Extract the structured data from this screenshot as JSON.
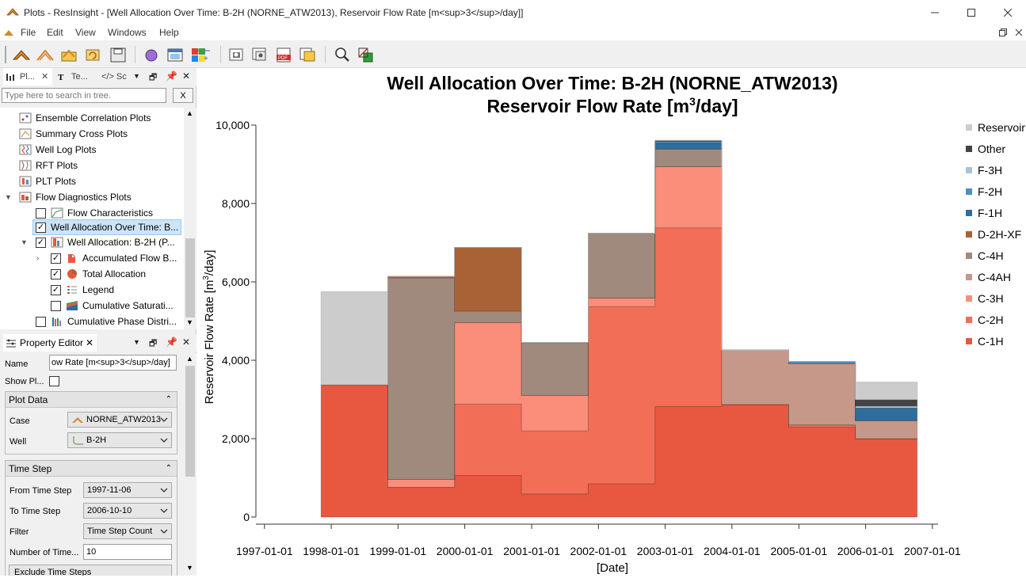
{
  "window": {
    "title": "Plots - ResInsight - [Well Allocation Over Time: B-2H (NORNE_ATW2013), Reservoir Flow Rate [m<sup>3</sup>/day]]"
  },
  "menu": [
    "File",
    "Edit",
    "View",
    "Windows",
    "Help"
  ],
  "project_tree": {
    "tabs": [
      "Pl...",
      "Te...",
      "Sc"
    ],
    "search_placeholder": "Type here to search in tree.",
    "search_clear": "X",
    "items": [
      {
        "label": "Ensemble Correlation Plots",
        "icon": "correlation-plot-icon"
      },
      {
        "label": "Summary Cross Plots",
        "icon": "cross-plot-icon"
      },
      {
        "label": "Well Log Plots",
        "icon": "well-log-icon"
      },
      {
        "label": "RFT Plots",
        "icon": "rft-plot-icon"
      },
      {
        "label": "PLT Plots",
        "icon": "plt-plot-icon"
      },
      {
        "label": "Flow Diagnostics Plots",
        "icon": "flow-diagnostics-icon"
      },
      {
        "label": "Flow Characteristics",
        "icon": "flow-characteristics-icon",
        "checked": false
      },
      {
        "label": "Well Allocation Over Time: B...",
        "icon": "",
        "checked": true,
        "selected": true
      },
      {
        "label": "Well Allocation: B-2H (P...",
        "icon": "well-allocation-icon",
        "checked": true
      },
      {
        "label": "Accumulated Flow B...",
        "icon": "accumulated-flow-icon",
        "checked": true
      },
      {
        "label": "Total Allocation",
        "icon": "pie-chart-icon",
        "checked": true
      },
      {
        "label": "Legend",
        "icon": "legend-icon",
        "checked": true
      },
      {
        "label": "Cumulative Saturati...",
        "icon": "saturation-icon",
        "checked": false
      },
      {
        "label": "Cumulative Phase Distri...",
        "icon": "phase-distribution-icon",
        "checked": false
      }
    ]
  },
  "property_editor": {
    "title": "Property Editor",
    "name_label": "Name",
    "name_value": "ow Rate [m<sup>3</sup>/day]",
    "show_plot_label": "Show Pl...",
    "show_plot_checked": false,
    "plot_data_group": "Plot Data",
    "case_label": "Case",
    "case_value": "NORNE_ATW2013",
    "well_label": "Well",
    "well_value": "B-2H",
    "time_step_group": "Time Step",
    "from_label": "From Time Step",
    "from_value": "1997-11-06",
    "to_label": "To Time Step",
    "to_value": "2006-10-10",
    "filter_label": "Filter",
    "filter_value": "Time Step Count",
    "num_label": "Number of Time...",
    "num_value": "10",
    "exclude_label": "Exclude Time Steps"
  },
  "chart_data": {
    "type": "area",
    "subtype": "stacked-step",
    "title_line1": "Well Allocation Over Time: B-2H (NORNE_ATW2013)",
    "title_line2_prefix": "Reservoir Flow Rate [m",
    "title_line2_sup": "3",
    "title_line2_suffix": "/day]",
    "ylabel_prefix": "Reservoir Flow Rate [m",
    "ylabel_sup": "3",
    "ylabel_suffix": "/day]",
    "xlabel": "[Date]",
    "ylim": [
      0,
      10000
    ],
    "yticks": [
      0,
      2000,
      4000,
      6000,
      8000,
      10000
    ],
    "ytick_labels": [
      "0",
      "2,000",
      "4,000",
      "6,000",
      "8,000",
      "10,000"
    ],
    "xticks": [
      "1997-01-01",
      "1998-01-01",
      "1999-01-01",
      "2000-01-01",
      "2001-01-01",
      "2002-01-01",
      "2003-01-01",
      "2004-01-01",
      "2005-01-01",
      "2006-01-01",
      "2007-01-01"
    ],
    "time_steps": [
      "1997-11-06",
      "1998-11-06",
      "1999-11-06",
      "2000-11-06",
      "2001-11-06",
      "2002-11-06",
      "2003-11-06",
      "2004-11-06",
      "2005-11-06",
      "2006-10-10"
    ],
    "legend_position": "right",
    "series": [
      {
        "name": "C-1H",
        "color": "#e8573f",
        "values": [
          3380,
          760,
          1060,
          590,
          850,
          2820,
          2870,
          2290,
          2000
        ]
      },
      {
        "name": "C-2H",
        "color": "#f26e57",
        "values": [
          0,
          0,
          1820,
          1610,
          4520,
          4560,
          0,
          60,
          0
        ]
      },
      {
        "name": "C-3H",
        "color": "#fb8d7b",
        "values": [
          0,
          200,
          2080,
          900,
          220,
          1560,
          0,
          0,
          0
        ]
      },
      {
        "name": "C-4AH",
        "color": "#c59889",
        "values": [
          0,
          0,
          0,
          0,
          0,
          0,
          1390,
          1570,
          460
        ]
      },
      {
        "name": "C-4H",
        "color": "#a08a7d",
        "values": [
          0,
          5140,
          290,
          1350,
          1650,
          450,
          0,
          0,
          0
        ]
      },
      {
        "name": "D-2H-XF",
        "color": "#a96236",
        "values": [
          0,
          40,
          1630,
          0,
          0,
          0,
          0,
          0,
          0
        ]
      },
      {
        "name": "F-1H",
        "color": "#2e6e9c",
        "values": [
          0,
          0,
          0,
          0,
          0,
          150,
          0,
          0,
          320
        ]
      },
      {
        "name": "F-2H",
        "color": "#4f8fbf",
        "values": [
          0,
          0,
          0,
          0,
          0,
          50,
          0,
          50,
          0
        ]
      },
      {
        "name": "F-3H",
        "color": "#a6c4dd",
        "values": [
          0,
          0,
          0,
          0,
          0,
          0,
          0,
          0,
          50
        ]
      },
      {
        "name": "Other",
        "color": "#444444",
        "values": [
          0,
          0,
          0,
          0,
          0,
          20,
          0,
          0,
          170
        ]
      },
      {
        "name": "Reservoir",
        "color": "#cccccc",
        "values": [
          2370,
          0,
          0,
          0,
          0,
          0,
          0,
          0,
          440
        ]
      }
    ]
  }
}
